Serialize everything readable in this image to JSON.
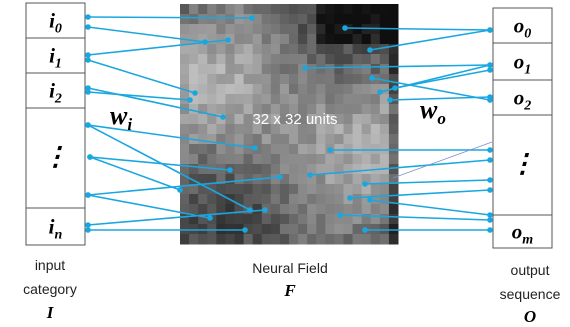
{
  "input": {
    "rows": [
      {
        "base": "i",
        "sub": "0"
      },
      {
        "base": "i",
        "sub": "1"
      },
      {
        "base": "i",
        "sub": "2"
      },
      {
        "base": "⋮"
      },
      {
        "base": "i",
        "sub": "n"
      }
    ],
    "caption": [
      "input",
      "category"
    ],
    "symbol": "I"
  },
  "weights": {
    "input": {
      "base": "w",
      "sub": "i"
    },
    "output": {
      "base": "w",
      "sub": "o"
    }
  },
  "field": {
    "label": "32 x 32 units",
    "caption": "Neural Field",
    "symbol": "F"
  },
  "output": {
    "rows": [
      {
        "base": "o",
        "sub": "0"
      },
      {
        "base": "o",
        "sub": "1"
      },
      {
        "base": "o",
        "sub": "2"
      },
      {
        "base": "⋮"
      },
      {
        "base": "o",
        "sub": "m"
      }
    ],
    "caption": [
      "output",
      "sequence"
    ],
    "symbol": "O"
  }
}
